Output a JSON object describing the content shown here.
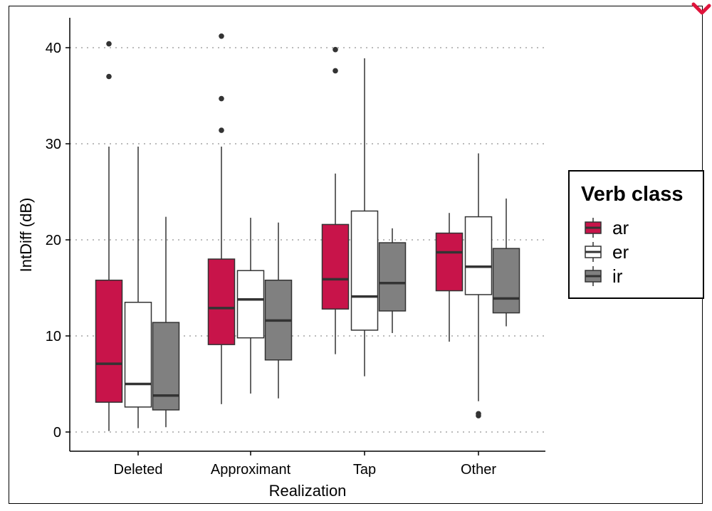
{
  "chart_data": {
    "type": "boxplot",
    "xlabel": "Realization",
    "ylabel": "IntDiff (dB)",
    "categories": [
      "Deleted",
      "Approximant",
      "Tap",
      "Other"
    ],
    "ylim": [
      -2,
      43
    ],
    "yticks": [
      0,
      10,
      20,
      30,
      40
    ],
    "grid": "horizontal dotted at major y ticks",
    "legend": {
      "title": "Verb class",
      "position": "right"
    },
    "series": [
      {
        "name": "ar",
        "color": "#C8144A",
        "boxes": [
          {
            "category": "Deleted",
            "whisker_low": 0.1,
            "q1": 3.1,
            "median": 7.1,
            "q3": 15.8,
            "whisker_high": 29.7,
            "outliers": [
              37.0,
              40.4
            ]
          },
          {
            "category": "Approximant",
            "whisker_low": 2.9,
            "q1": 9.1,
            "median": 12.9,
            "q3": 18.0,
            "whisker_high": 29.7,
            "outliers": [
              31.4,
              34.7,
              41.2
            ]
          },
          {
            "category": "Tap",
            "whisker_low": 8.1,
            "q1": 12.8,
            "median": 15.9,
            "q3": 21.6,
            "whisker_high": 26.9,
            "outliers": [
              37.6,
              39.8
            ]
          },
          {
            "category": "Other",
            "whisker_low": 9.4,
            "q1": 14.7,
            "median": 18.7,
            "q3": 20.7,
            "whisker_high": 22.8,
            "outliers": []
          }
        ]
      },
      {
        "name": "er",
        "color": "#FFFFFF",
        "boxes": [
          {
            "category": "Deleted",
            "whisker_low": 0.4,
            "q1": 2.6,
            "median": 5.0,
            "q3": 13.5,
            "whisker_high": 29.7,
            "outliers": []
          },
          {
            "category": "Approximant",
            "whisker_low": 4.0,
            "q1": 9.8,
            "median": 13.8,
            "q3": 16.8,
            "whisker_high": 22.3,
            "outliers": []
          },
          {
            "category": "Tap",
            "whisker_low": 5.8,
            "q1": 10.6,
            "median": 14.1,
            "q3": 23.0,
            "whisker_high": 38.9,
            "outliers": []
          },
          {
            "category": "Other",
            "whisker_low": 3.2,
            "q1": 14.3,
            "median": 17.2,
            "q3": 22.4,
            "whisker_high": 29.0,
            "outliers": [
              1.7,
              1.9
            ]
          }
        ]
      },
      {
        "name": "ir",
        "color": "#808080",
        "boxes": [
          {
            "category": "Deleted",
            "whisker_low": 0.5,
            "q1": 2.3,
            "median": 3.8,
            "q3": 11.4,
            "whisker_high": 22.4,
            "outliers": []
          },
          {
            "category": "Approximant",
            "whisker_low": 3.5,
            "q1": 7.5,
            "median": 11.6,
            "q3": 15.8,
            "whisker_high": 21.8,
            "outliers": []
          },
          {
            "category": "Tap",
            "whisker_low": 10.3,
            "q1": 12.6,
            "median": 15.5,
            "q3": 19.7,
            "whisker_high": 21.2,
            "outliers": []
          },
          {
            "category": "Other",
            "whisker_low": 11.0,
            "q1": 12.4,
            "median": 13.9,
            "q3": 19.1,
            "whisker_high": 24.3,
            "outliers": []
          }
        ]
      }
    ]
  }
}
